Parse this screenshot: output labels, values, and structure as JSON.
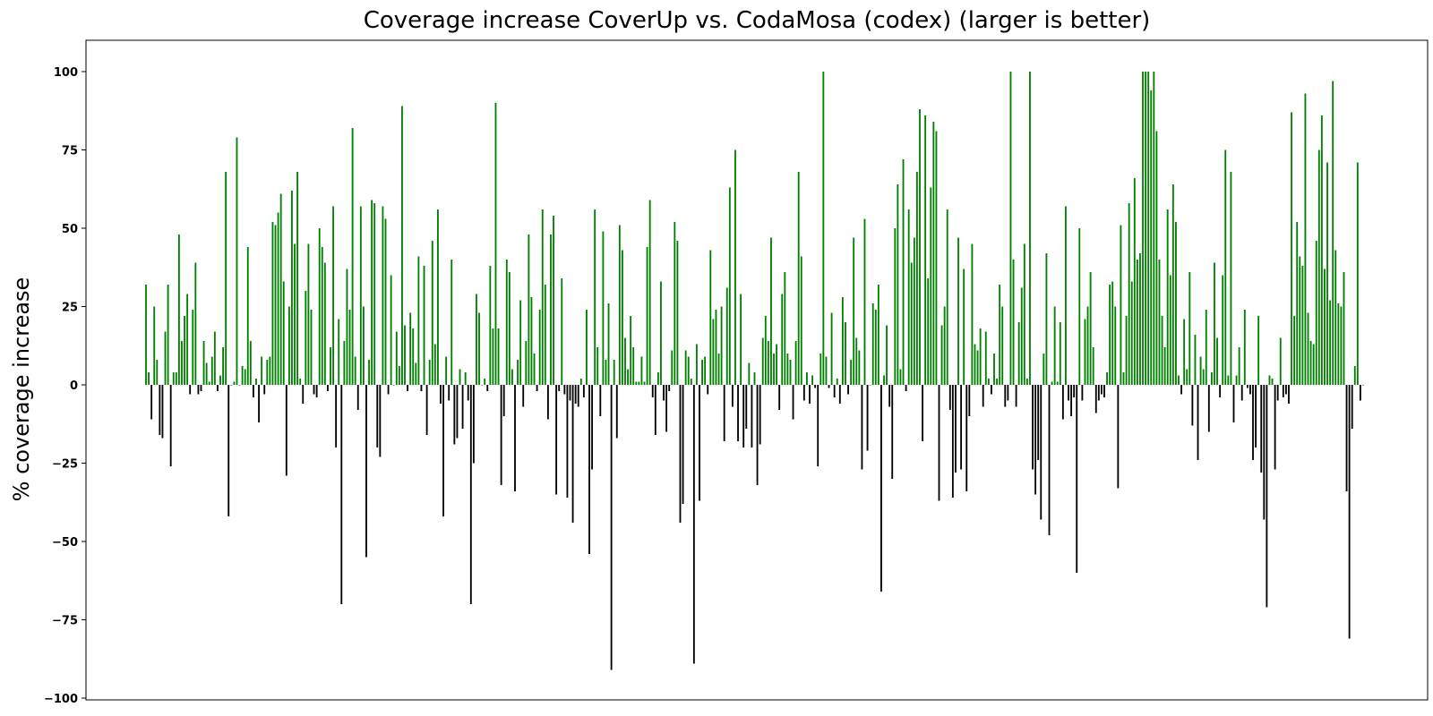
{
  "chart_data": {
    "type": "bar",
    "title": "Coverage increase CoverUp vs. CodaMosa (codex) (larger is better)",
    "xlabel": "",
    "ylabel": "% coverage increase",
    "ylim": [
      -100,
      110
    ],
    "yticks": [
      100,
      75,
      50,
      25,
      0,
      -25,
      -50,
      -75,
      -100
    ],
    "ytick_labels": [
      "100",
      "75",
      "50",
      "25",
      "0",
      "−25",
      "−50",
      "−75",
      "−100"
    ],
    "grid": false,
    "positive_color": "#008000",
    "negative_color": "#000000",
    "values": [
      32,
      4,
      -11,
      25,
      8,
      -16,
      -17,
      17,
      32,
      -26,
      4,
      4,
      48,
      14,
      22,
      29,
      -3,
      24,
      39,
      -3,
      -2,
      14,
      7,
      1,
      9,
      17,
      -2,
      3,
      12,
      68,
      -42,
      0,
      1,
      79,
      0,
      6,
      5,
      44,
      14,
      -4,
      2,
      -12,
      9,
      -3,
      8,
      9,
      52,
      51,
      55,
      61,
      33,
      -29,
      25,
      62,
      45,
      68,
      2,
      -6,
      30,
      45,
      24,
      -3,
      -4,
      50,
      44,
      39,
      -2,
      12,
      57,
      -20,
      21,
      -70,
      14,
      37,
      24,
      82,
      9,
      -8,
      57,
      25,
      -55,
      8,
      59,
      58,
      -20,
      -23,
      57,
      53,
      -3,
      35,
      0,
      17,
      6,
      89,
      19,
      -2,
      23,
      18,
      7,
      41,
      -2,
      38,
      -16,
      8,
      46,
      13,
      56,
      -6,
      -42,
      9,
      -5,
      40,
      -19,
      -17,
      5,
      -14,
      4,
      -5,
      -70,
      -25,
      29,
      23,
      0,
      2,
      -2,
      38,
      18,
      90,
      18,
      -32,
      -10,
      40,
      36,
      5,
      -34,
      8,
      27,
      -7,
      14,
      48,
      28,
      10,
      -2,
      24,
      56,
      32,
      -11,
      48,
      54,
      -35,
      -2,
      34,
      -3,
      -36,
      -5,
      -44,
      -6,
      -7,
      2,
      -4,
      24,
      -54,
      -27,
      56,
      12,
      -10,
      49,
      8,
      26,
      -91,
      8,
      -17,
      51,
      43,
      15,
      5,
      22,
      12,
      1,
      1,
      9,
      1,
      44,
      59,
      -4,
      -16,
      4,
      33,
      -5,
      -15,
      -2,
      11,
      52,
      46,
      -44,
      -38,
      11,
      9,
      2,
      -89,
      13,
      -37,
      8,
      9,
      -3,
      43,
      21,
      24,
      10,
      25,
      -18,
      31,
      63,
      -7,
      75,
      -18,
      29,
      -20,
      -14,
      7,
      -20,
      4,
      -32,
      -19,
      15,
      22,
      14,
      47,
      10,
      13,
      -8,
      29,
      36,
      10,
      8,
      -11,
      14,
      68,
      41,
      -5,
      4,
      -6,
      3,
      -1,
      -26,
      10,
      100,
      9,
      -1,
      23,
      -4,
      2,
      -6,
      28,
      20,
      -3,
      8,
      47,
      15,
      11,
      -27,
      53,
      -21,
      0,
      26,
      24,
      32,
      -66,
      3,
      19,
      -7,
      -30,
      50,
      64,
      5,
      72,
      -2,
      56,
      39,
      47,
      68,
      88,
      -18,
      86,
      34,
      63,
      84,
      81,
      -37,
      19,
      25,
      56,
      -8,
      -36,
      -28,
      47,
      -27,
      37,
      -34,
      -10,
      45,
      13,
      11,
      18,
      -7,
      17,
      2,
      -3,
      10,
      2,
      32,
      25,
      -7,
      -5,
      100,
      40,
      -7,
      20,
      31,
      45,
      2,
      100,
      -27,
      -35,
      -24,
      -43,
      10,
      42,
      -48,
      1,
      25,
      1,
      20,
      -11,
      57,
      -5,
      -10,
      -4,
      -60,
      50,
      -5,
      21,
      25,
      36,
      12,
      -9,
      -5,
      -3,
      -4,
      4,
      32,
      33,
      25,
      -33,
      51,
      4,
      22,
      58,
      33,
      66,
      40,
      42,
      100,
      100,
      100,
      94,
      100,
      81,
      40,
      22,
      12,
      56,
      35,
      64,
      52,
      3,
      -3,
      21,
      5,
      36,
      -13,
      16,
      -24,
      9,
      5,
      24,
      -15,
      4,
      39,
      15,
      -4,
      35,
      75,
      3,
      68,
      -12,
      3,
      12,
      -5,
      24,
      -1,
      -3,
      -24,
      -20,
      22,
      -28,
      -43,
      -71,
      3,
      2,
      -27,
      -5,
      15,
      -4,
      -3,
      -6,
      87,
      22,
      52,
      41,
      38,
      93,
      23,
      14,
      13,
      46,
      75,
      86,
      37,
      71,
      27,
      97,
      43,
      26,
      25,
      36,
      -34,
      -81,
      -14,
      6,
      71,
      -5,
      0
    ]
  }
}
